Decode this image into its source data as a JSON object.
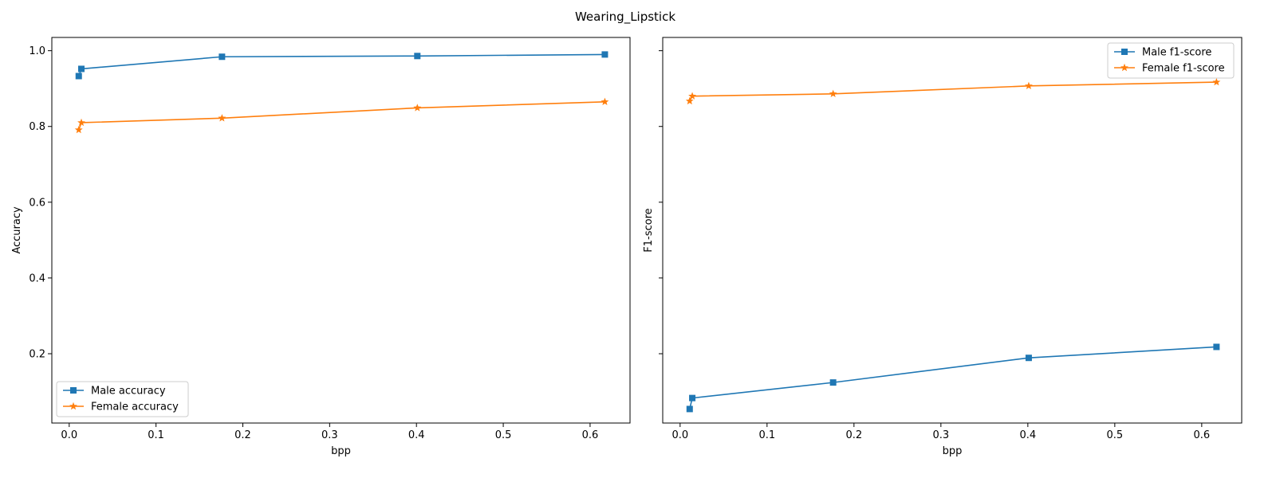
{
  "figure": {
    "suptitle": "Wearing_Lipstick"
  },
  "colors": {
    "male": "#1f77b4",
    "female": "#ff7f0e",
    "frame": "#000000"
  },
  "chart_data": [
    {
      "type": "line",
      "xlabel": "bpp",
      "ylabel": "Accuracy",
      "xlim": [
        -0.02,
        0.646
      ],
      "ylim": [
        0.017,
        1.035
      ],
      "xticks": [
        0.0,
        0.1,
        0.2,
        0.3,
        0.4,
        0.5,
        0.6
      ],
      "xtick_labels": [
        "0.0",
        "0.1",
        "0.2",
        "0.3",
        "0.4",
        "0.5",
        "0.6"
      ],
      "yticks": [
        0.2,
        0.4,
        0.6,
        0.8,
        1.0
      ],
      "ytick_labels": [
        "0.2",
        "0.4",
        "0.6",
        "0.8",
        "1.0"
      ],
      "show_yticklabels": true,
      "legend_position": "lower-left",
      "series": [
        {
          "name": "Male accuracy",
          "color_key": "male",
          "marker": "square",
          "x": [
            0.011,
            0.014,
            0.176,
            0.401,
            0.617
          ],
          "y": [
            0.933,
            0.952,
            0.984,
            0.986,
            0.99
          ]
        },
        {
          "name": "Female accuracy",
          "color_key": "female",
          "marker": "star",
          "x": [
            0.011,
            0.014,
            0.176,
            0.401,
            0.617
          ],
          "y": [
            0.791,
            0.81,
            0.822,
            0.849,
            0.865
          ]
        }
      ]
    },
    {
      "type": "line",
      "xlabel": "bpp",
      "ylabel": "F1-score",
      "xlim": [
        -0.02,
        0.646
      ],
      "ylim": [
        0.017,
        1.035
      ],
      "xticks": [
        0.0,
        0.1,
        0.2,
        0.3,
        0.4,
        0.5,
        0.6
      ],
      "xtick_labels": [
        "0.0",
        "0.1",
        "0.2",
        "0.3",
        "0.4",
        "0.5",
        "0.6"
      ],
      "yticks": [
        0.2,
        0.4,
        0.6,
        0.8,
        1.0
      ],
      "ytick_labels": [
        "",
        "",
        "",
        "",
        ""
      ],
      "show_yticklabels": false,
      "legend_position": "upper-right",
      "series": [
        {
          "name": "Male f1-score",
          "color_key": "male",
          "marker": "square",
          "x": [
            0.011,
            0.014,
            0.176,
            0.401,
            0.617
          ],
          "y": [
            0.054,
            0.083,
            0.124,
            0.189,
            0.218
          ]
        },
        {
          "name": "Female f1-score",
          "color_key": "female",
          "marker": "star",
          "x": [
            0.011,
            0.014,
            0.176,
            0.401,
            0.617
          ],
          "y": [
            0.867,
            0.88,
            0.886,
            0.907,
            0.917
          ]
        }
      ]
    }
  ]
}
